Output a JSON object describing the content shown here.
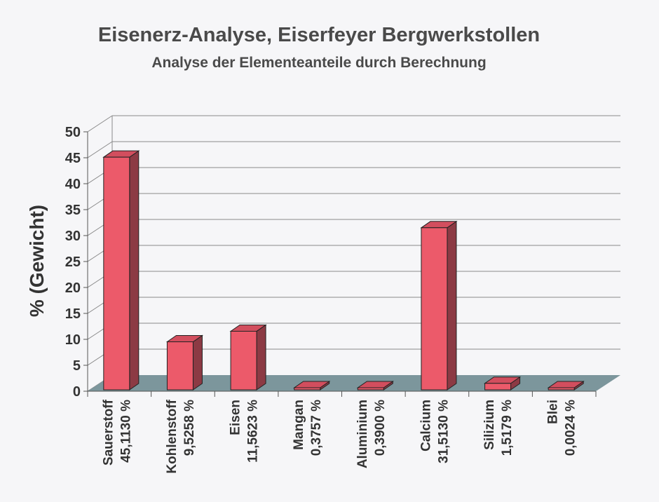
{
  "chart_data": {
    "type": "bar",
    "title": "Eisenerz-Analyse, Eiserfeyer Bergwerkstollen",
    "subtitle": "Analyse der Elementeanteile durch Berechnung",
    "ylabel": "% (Gewicht)",
    "xlabel": "",
    "ylim": [
      0,
      50
    ],
    "yticks": [
      "0",
      "5",
      "10",
      "15",
      "20",
      "25",
      "30",
      "35",
      "40",
      "45",
      "50"
    ],
    "categories": [
      "Sauerstoff",
      "Kohlenstoff",
      "Eisen",
      "Mangan",
      "Aluminium",
      "Calcium",
      "Silizium",
      "Blei"
    ],
    "value_labels": [
      "45,1130 %",
      "9,5258 %",
      "11,5623 %",
      "0,3757 %",
      "0,3900 %",
      "31,5130 %",
      "1,5179 %",
      "0,0024 %"
    ],
    "values": [
      45.113,
      9.5258,
      11.5623,
      0.3757,
      0.39,
      31.513,
      1.5179,
      0.0024
    ],
    "grid": true,
    "style": "3d-column",
    "colors": {
      "bar_front": "#ec5a6a",
      "bar_top": "#d24e5e",
      "bar_side": "#8c3a44",
      "floor": "#7c969c",
      "grid": "#8a8a8a"
    }
  }
}
